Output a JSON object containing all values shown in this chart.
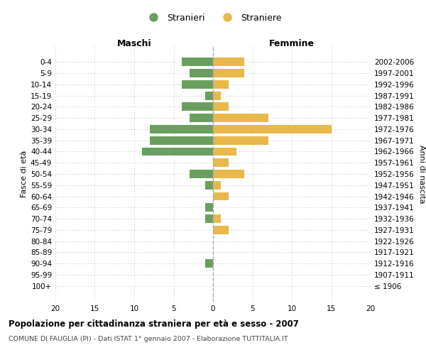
{
  "age_groups": [
    "100+",
    "95-99",
    "90-94",
    "85-89",
    "80-84",
    "75-79",
    "70-74",
    "65-69",
    "60-64",
    "55-59",
    "50-54",
    "45-49",
    "40-44",
    "35-39",
    "30-34",
    "25-29",
    "20-24",
    "15-19",
    "10-14",
    "5-9",
    "0-4"
  ],
  "birth_years": [
    "≤ 1906",
    "1907-1911",
    "1912-1916",
    "1917-1921",
    "1922-1926",
    "1927-1931",
    "1932-1936",
    "1937-1941",
    "1942-1946",
    "1947-1951",
    "1952-1956",
    "1957-1961",
    "1962-1966",
    "1967-1971",
    "1972-1976",
    "1977-1981",
    "1982-1986",
    "1987-1991",
    "1992-1996",
    "1997-2001",
    "2002-2006"
  ],
  "maschi": [
    0,
    0,
    1,
    0,
    0,
    0,
    1,
    1,
    0,
    1,
    3,
    0,
    9,
    8,
    8,
    3,
    4,
    1,
    4,
    3,
    4
  ],
  "femmine": [
    0,
    0,
    0,
    0,
    0,
    2,
    1,
    0,
    2,
    1,
    4,
    2,
    3,
    7,
    15,
    7,
    2,
    1,
    2,
    4,
    4
  ],
  "color_maschi": "#6b9e5e",
  "color_femmine": "#e8b84b",
  "title_main": "Popolazione per cittadinanza straniera per età e sesso - 2007",
  "title_sub": "COMUNE DI FAUGLIA (PI) - Dati ISTAT 1° gennaio 2007 - Elaborazione TUTTITALIA.IT",
  "label_maschi": "Maschi",
  "label_femmine": "Femmine",
  "ylabel_left": "Fasce di età",
  "ylabel_right": "Anni di nascita",
  "legend_maschi": "Stranieri",
  "legend_femmine": "Straniere",
  "xlim": 20,
  "background_color": "#ffffff",
  "grid_color": "#cccccc",
  "grid_color2": "#dddddd"
}
